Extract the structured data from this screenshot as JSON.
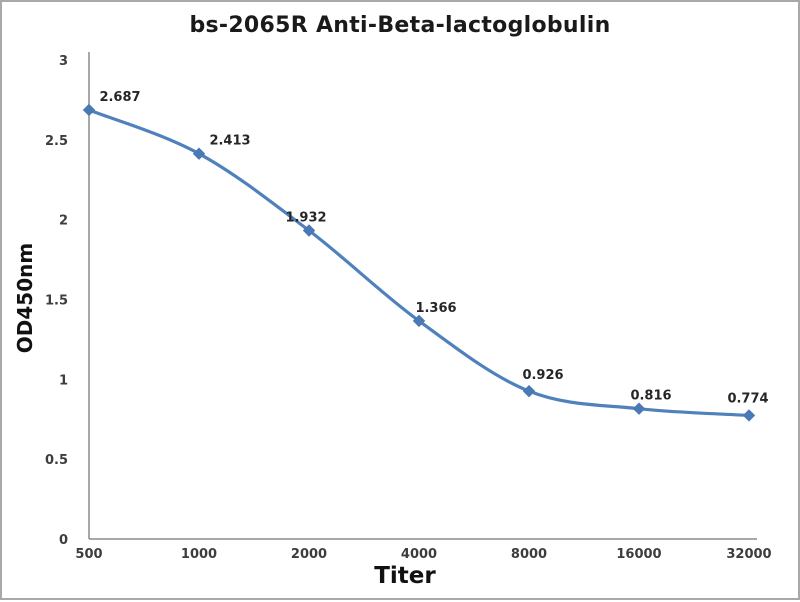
{
  "chart_data": {
    "type": "line",
    "title": "bs-2065R Anti-Beta-lactoglobulin",
    "xlabel": "Titer",
    "ylabel": "OD450nm",
    "categories": [
      "500",
      "1000",
      "2000",
      "4000",
      "8000",
      "16000",
      "32000"
    ],
    "series": [
      {
        "name": "OD450nm",
        "values": [
          2.687,
          2.413,
          1.932,
          1.366,
          0.926,
          0.816,
          0.774
        ]
      }
    ],
    "data_labels": [
      "2.687",
      "2.413",
      "1.932",
      "1.366",
      "0.926",
      "0.816",
      "0.774"
    ],
    "y_ticks": [
      "3",
      "2.5",
      "2",
      "1.5",
      "1",
      "0.5",
      "0"
    ],
    "y_tick_values": [
      3,
      2.5,
      2,
      1.5,
      1,
      0.5,
      0
    ],
    "ylim": [
      0,
      3
    ],
    "grid": false,
    "legend": "none",
    "smooth": true,
    "marker": "diamond",
    "colors": {
      "line": "#4f81bd",
      "marker": "#4a79b4",
      "axis": "#8c8c8c",
      "frame": "#a9a9a9"
    },
    "label_dx": [
      31,
      31,
      -3,
      17,
      14,
      12,
      -1
    ],
    "label_dy": [
      -9,
      -9,
      -9,
      -9,
      -12,
      -9,
      -13
    ]
  }
}
